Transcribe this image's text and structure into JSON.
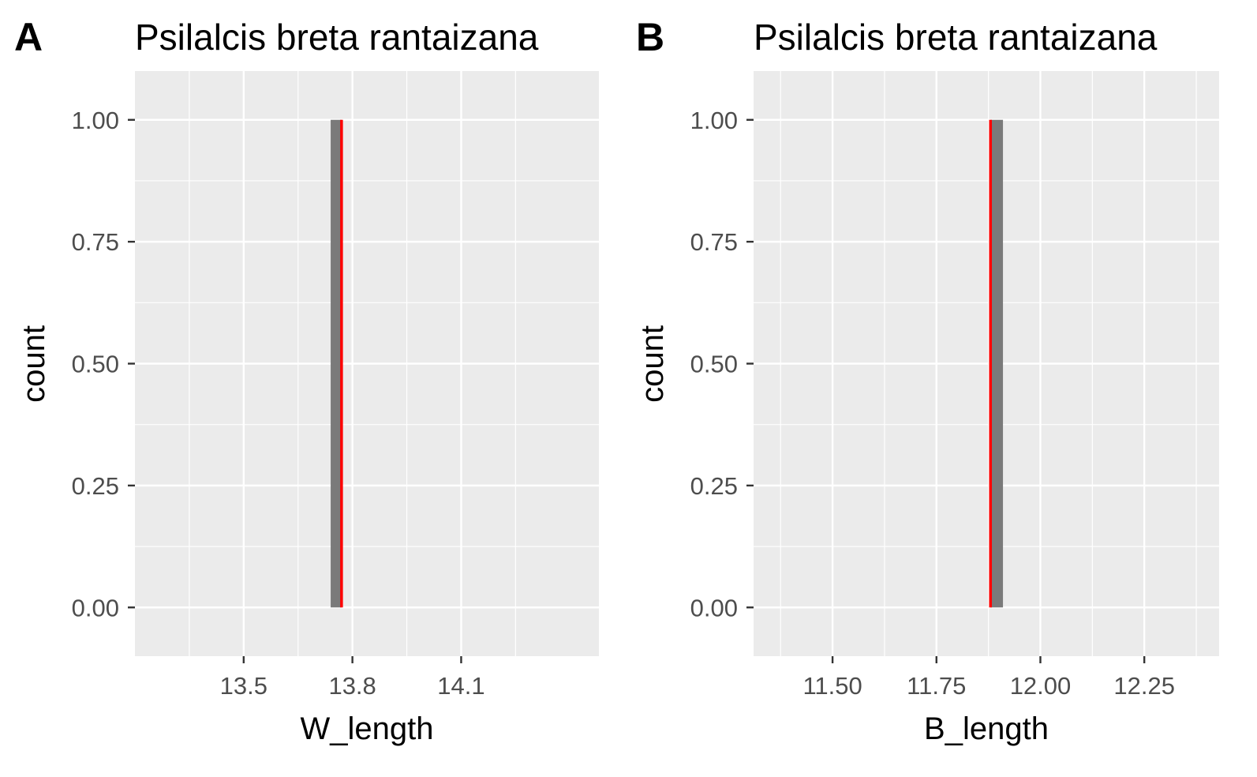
{
  "colors": {
    "panel_background": "#ebebeb",
    "grid": "#ffffff",
    "bar_fill": "#7a7a7a",
    "reference_line": "#ff0000",
    "tick_text": "#4d4d4d",
    "tick_mark": "#333333"
  },
  "chart_data": [
    {
      "type": "bar",
      "panel_tag": "A",
      "title": "Psilalcis breta rantaizana",
      "xlabel": "W_length",
      "ylabel": "count",
      "xlim": [
        13.2,
        14.48
      ],
      "ylim": [
        -0.1,
        1.1
      ],
      "x_ticks": [
        13.5,
        13.8,
        14.1
      ],
      "x_tick_labels": [
        "13.5",
        "13.8",
        "14.1"
      ],
      "y_ticks": [
        0,
        0.25,
        0.5,
        0.75,
        1
      ],
      "y_tick_labels": [
        "0.00",
        "0.25",
        "0.50",
        "0.75",
        "1.00"
      ],
      "grid": true,
      "bars": [
        {
          "x_start": 13.74,
          "x_end": 13.77,
          "count": 1
        }
      ],
      "reference_line_x": 13.77
    },
    {
      "type": "bar",
      "panel_tag": "B",
      "title": "Psilalcis breta rantaizana",
      "xlabel": "B_length",
      "ylabel": "count",
      "xlim": [
        11.31,
        12.43
      ],
      "ylim": [
        -0.1,
        1.1
      ],
      "x_ticks": [
        11.5,
        11.75,
        12.0,
        12.25
      ],
      "x_tick_labels": [
        "11.50",
        "11.75",
        "12.00",
        "12.25"
      ],
      "y_ticks": [
        0,
        0.25,
        0.5,
        0.75,
        1
      ],
      "y_tick_labels": [
        "0.00",
        "0.25",
        "0.50",
        "0.75",
        "1.00"
      ],
      "grid": true,
      "bars": [
        {
          "x_start": 11.88,
          "x_end": 11.91,
          "count": 1
        }
      ],
      "reference_line_x": 11.88
    }
  ]
}
